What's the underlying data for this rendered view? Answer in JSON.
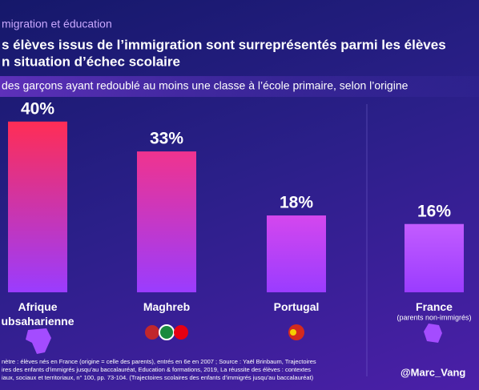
{
  "chart_data": {
    "type": "bar",
    "kicker": "migration et éducation",
    "title_lines": [
      "s élèves issus de l’immigration sont surreprésentés parmi les élèves",
      "n situation d’échec scolaire"
    ],
    "subtitle": "des garçons ayant redoublé au moins une classe à l’école primaire, selon l’origine",
    "categories": [
      "Afrique\nubsaharienne",
      "Maghreb",
      "Portugal",
      "France"
    ],
    "values": [
      40,
      33,
      18,
      16
    ],
    "value_labels": [
      "40%",
      "33%",
      "18%",
      "16%"
    ],
    "colors": [
      "#ff2d55",
      "#f0338e",
      "#d447ee",
      "#c35cff"
    ],
    "annotation": "(parents non-immigrés)",
    "footnote_lines": [
      "nètre : élèves nés en France (origine = celle des parents), entrés en 6e en 2007 ; Source : Yaël Brinbaum, Trajectoires",
      "ires des enfants d’immigrés jusqu’au baccalauréat, Education & formations, 2019, La réussite des élèves : contextes",
      "iaux, sociaux et territoriaux, n° 100, pp. 73-104. (Trajectoires scolaires des enfants d’immigrés jusqu’au baccalauréat)"
    ],
    "credit": "@Marc_Vang"
  }
}
